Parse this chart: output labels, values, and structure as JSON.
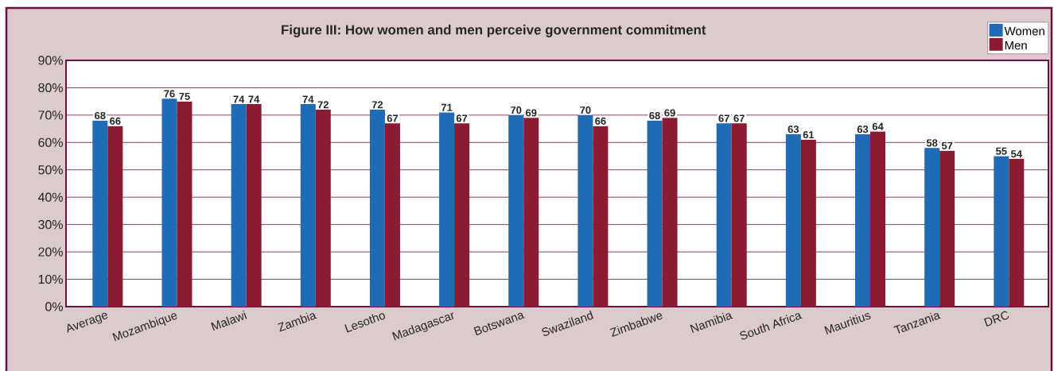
{
  "chart_data": {
    "type": "bar",
    "title": "Figure III: How women and men perceive government commitment",
    "categories": [
      "Average",
      "Mozambique",
      "Malawi",
      "Zambia",
      "Lesotho",
      "Madagascar",
      "Botswana",
      "Swaziland",
      "Zimbabwe",
      "Namibia",
      "South Africa",
      "Mauritius",
      "Tanzania",
      "DRC"
    ],
    "series": [
      {
        "name": "Women",
        "color": "#1f6bb5",
        "values": [
          68,
          76,
          74,
          74,
          72,
          71,
          70,
          70,
          68,
          67,
          63,
          63,
          58,
          55
        ]
      },
      {
        "name": "Men",
        "color": "#8b1a33",
        "values": [
          66,
          75,
          74,
          72,
          67,
          67,
          69,
          66,
          69,
          67,
          61,
          64,
          57,
          54
        ]
      }
    ],
    "ylim": [
      0,
      90
    ],
    "yticks": [
      {
        "value": 0,
        "label": "0%"
      },
      {
        "value": 10,
        "label": "10%"
      },
      {
        "value": 20,
        "label": "20%"
      },
      {
        "value": 30,
        "label": "30%"
      },
      {
        "value": 40,
        "label": "40%"
      },
      {
        "value": 50,
        "label": "50%"
      },
      {
        "value": 60,
        "label": "60%"
      },
      {
        "value": 70,
        "label": "70%"
      },
      {
        "value": 80,
        "label": "80%"
      },
      {
        "value": 90,
        "label": "90%"
      }
    ],
    "grid": "y",
    "legend": "top right",
    "data_labels": true
  }
}
